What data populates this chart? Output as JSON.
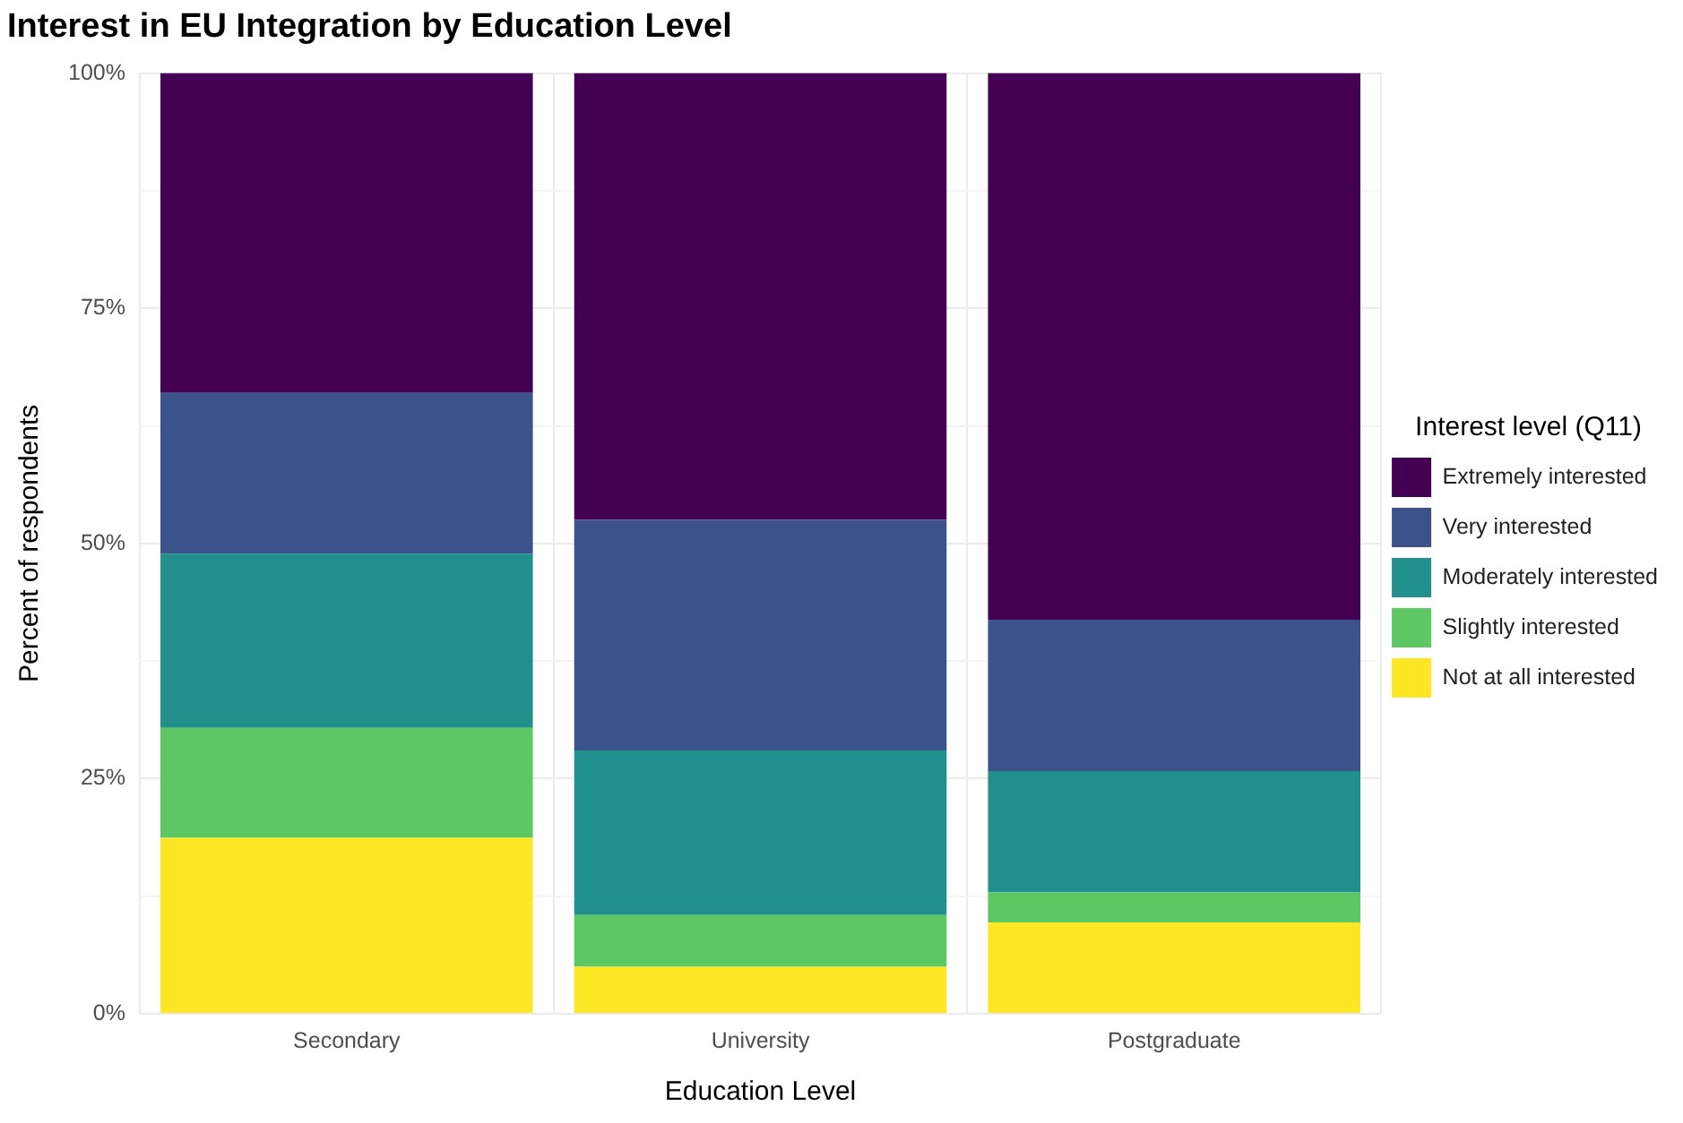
{
  "chart_data": {
    "type": "bar",
    "title": "Interest in EU Integration by Education Level",
    "xlabel": "Education Level",
    "ylabel": "Percent of respondents",
    "legend_title": "Interest level (Q11)",
    "categories": [
      "Secondary",
      "University",
      "Postgraduate"
    ],
    "series": [
      {
        "name": "Not at all interested",
        "color": "#fde725",
        "values": [
          18.7,
          5.0,
          9.7
        ]
      },
      {
        "name": "Slightly interested",
        "color": "#5dc863",
        "values": [
          11.7,
          5.5,
          3.2
        ]
      },
      {
        "name": "Moderately interested",
        "color": "#21908c",
        "values": [
          18.5,
          17.5,
          12.9
        ]
      },
      {
        "name": "Very interested",
        "color": "#3b528b",
        "values": [
          17.1,
          24.5,
          16.1
        ]
      },
      {
        "name": "Extremely interested",
        "color": "#440154",
        "values": [
          34.0,
          47.5,
          58.1
        ]
      }
    ],
    "stacked": true,
    "ylim": [
      0,
      100
    ],
    "yticks": [
      {
        "value": 0,
        "label": "0%"
      },
      {
        "value": 12.5,
        "label": null
      },
      {
        "value": 25,
        "label": "25%"
      },
      {
        "value": 37.5,
        "label": null
      },
      {
        "value": 50,
        "label": "50%"
      },
      {
        "value": 62.5,
        "label": null
      },
      {
        "value": 75,
        "label": "75%"
      },
      {
        "value": 87.5,
        "label": null
      },
      {
        "value": 100,
        "label": "100%"
      }
    ],
    "grid": true,
    "legend": "right"
  }
}
